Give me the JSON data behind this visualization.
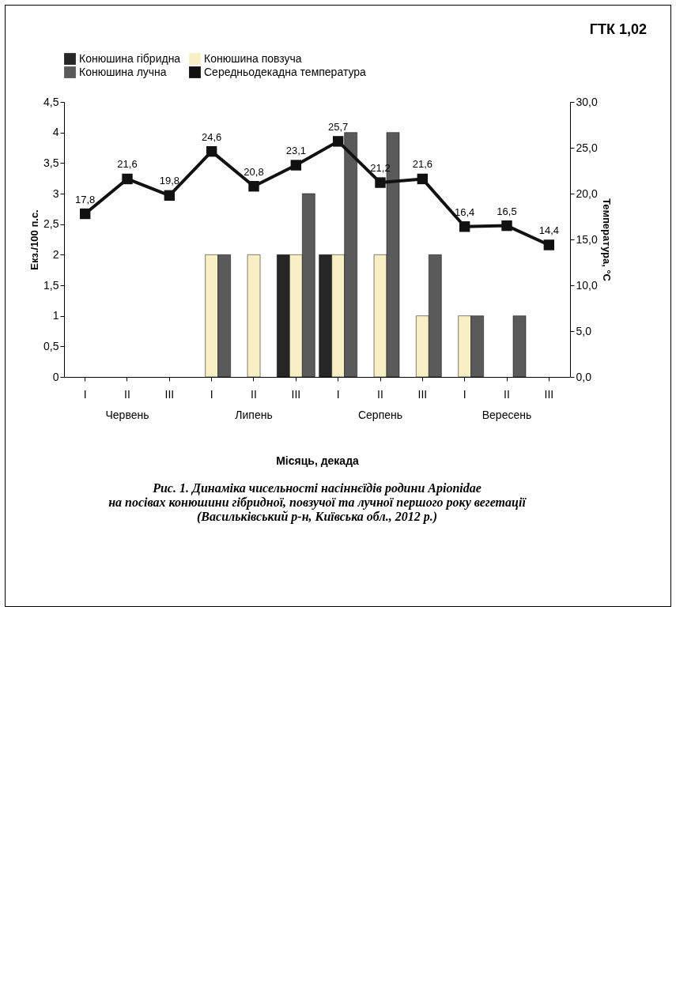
{
  "chart_data": {
    "type": "bar",
    "title": "Рис. 1. Динаміка чисельності насіннєїдів родини Apionidae\nна посівах конюшини гібридної, повзучої та лучної першого року вегетації\n(Васильківський р-н, Київська обл., 2012 р.)",
    "xlabel": "Місяць, декада",
    "ylabel": "Екз./100 п.с.",
    "y2label": "Температура, °С",
    "annotations": [
      "Червень",
      "Липень",
      "Серпень",
      "Вересень",
      "ГТК 1,02"
    ],
    "categories": [
      "I",
      "II",
      "III",
      "I",
      "II",
      "III",
      "I",
      "II",
      "III",
      "I",
      "II",
      "III"
    ],
    "series": [
      {
        "name": "Конюшина гібридна",
        "color": "#262626",
        "values": [
          null,
          null,
          null,
          null,
          null,
          2,
          2,
          null,
          null,
          null,
          null,
          null
        ]
      },
      {
        "name": "Конюшина повзуча",
        "color": "#f8efc4",
        "values": [
          null,
          null,
          null,
          2,
          2,
          2,
          2,
          2,
          1,
          1,
          null,
          null
        ]
      },
      {
        "name": "Конюшина лучна",
        "color": "#5a5a5a",
        "values": [
          null,
          null,
          null,
          2,
          null,
          3,
          4,
          4,
          2,
          1,
          1,
          null
        ]
      },
      {
        "name": "Середньодекадна температура",
        "color": "#111111",
        "type": "line",
        "axis": "y2",
        "marker": "square",
        "line_style": "solid",
        "values": [
          17.8,
          21.6,
          19.8,
          24.6,
          20.8,
          23.1,
          25.7,
          21.2,
          21.6,
          16.4,
          16.5,
          14.4
        ],
        "value_labels": [
          "17,8",
          "21,6",
          "19,8",
          "24,6",
          "20,8",
          "23,1",
          "25,7",
          "21,2",
          "21,6",
          "16,4",
          "16,5",
          "14,4"
        ]
      }
    ],
    "ylim": [
      0,
      4.5
    ],
    "yticks": [
      {
        "value": 0,
        "label": "0"
      },
      {
        "value": 0.5,
        "label": "0,5"
      },
      {
        "value": 1,
        "label": "1"
      },
      {
        "value": 1.5,
        "label": "1,5"
      },
      {
        "value": 2,
        "label": "2"
      },
      {
        "value": 2.5,
        "label": "2,5"
      },
      {
        "value": 3,
        "label": "3"
      },
      {
        "value": 3.5,
        "label": "3,5"
      },
      {
        "value": 4,
        "label": "4"
      },
      {
        "value": 4.5,
        "label": "4,5"
      }
    ],
    "y2lim": [
      0,
      30
    ],
    "y2ticks": [
      {
        "value": 0,
        "label": "0,0"
      },
      {
        "value": 5,
        "label": "5,0"
      },
      {
        "value": 10,
        "label": "10,0"
      },
      {
        "value": 15,
        "label": "15,0"
      },
      {
        "value": 20,
        "label": "20,0"
      },
      {
        "value": 25,
        "label": "25,0"
      },
      {
        "value": 30,
        "label": "30,0"
      }
    ],
    "grid": false,
    "legend": "top"
  }
}
